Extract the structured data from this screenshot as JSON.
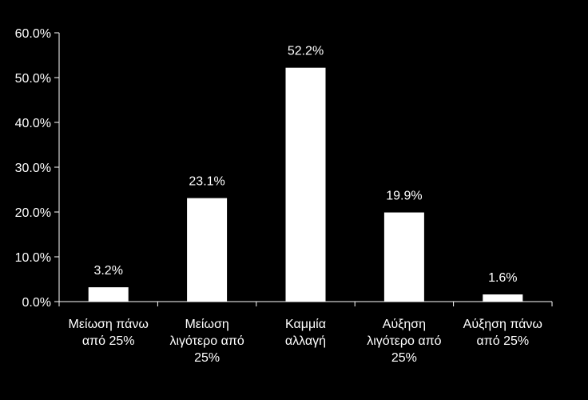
{
  "chart_data": {
    "type": "bar",
    "categories": [
      [
        "Μείωση πάνω",
        "από 25%"
      ],
      [
        "Μείωση",
        "λιγότερο από",
        "25%"
      ],
      [
        "Καμμία",
        "αλλαγή"
      ],
      [
        "Αύξηση",
        "λιγότερο από",
        "25%"
      ],
      [
        "Αύξηση πάνω",
        "από 25%"
      ]
    ],
    "values": [
      3.2,
      23.1,
      52.2,
      19.9,
      1.6
    ],
    "data_labels": [
      "3.2%",
      "23.1%",
      "52.2%",
      "19.9%",
      "1.6%"
    ],
    "ylim": [
      0,
      60
    ],
    "yticks": [
      0,
      10,
      20,
      30,
      40,
      50,
      60
    ],
    "ytick_labels": [
      "0.0%",
      "10.0%",
      "20.0%",
      "30.0%",
      "40.0%",
      "50.0%",
      "60.0%"
    ],
    "grid": false,
    "colors": {
      "background": "#000000",
      "bar": "#ffffff",
      "axis": "#ffffff",
      "text": "#ffffff"
    }
  }
}
